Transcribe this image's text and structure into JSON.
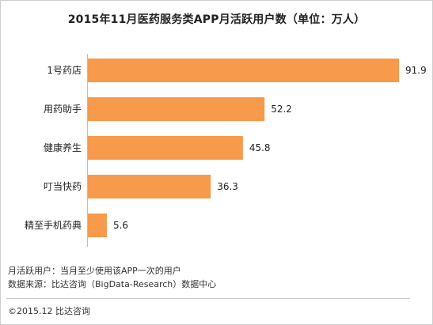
{
  "title": "2015年11月医药服务类APP月活跃用户数（单位：万人）",
  "chart_data": {
    "type": "bar",
    "orientation": "horizontal",
    "categories": [
      "1号药店",
      "用药助手",
      "健康养生",
      "叮当快药",
      "精至手机药典"
    ],
    "values": [
      91.9,
      52.2,
      45.8,
      36.3,
      5.6
    ],
    "unit": "万人",
    "xlim": [
      0,
      91.9
    ],
    "bar_color": "#F79A4C",
    "grid": false,
    "legend": "none"
  },
  "notes": {
    "definition": "月活跃用户：当月至少使用该APP一次的用户",
    "source": "数据来源：比达咨询（BigData-Research）数据中心"
  },
  "copyright": "©2015.12  比达咨询"
}
